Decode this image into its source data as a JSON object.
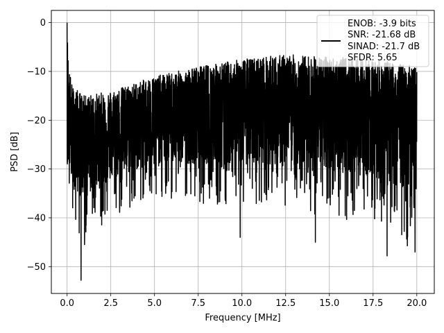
{
  "chart_data": {
    "type": "line",
    "title": "",
    "xlabel": "Frequency [MHz]",
    "ylabel": "PSD [dB]",
    "xlim": [
      -0.9,
      21.0
    ],
    "ylim": [
      -55.5,
      2.5
    ],
    "xticks": [
      0.0,
      2.5,
      5.0,
      7.5,
      10.0,
      12.5,
      15.0,
      17.5,
      20.0
    ],
    "xtick_labels": [
      "0.0",
      "2.5",
      "5.0",
      "7.5",
      "10.0",
      "12.5",
      "15.0",
      "17.5",
      "20.0"
    ],
    "yticks": [
      0,
      -10,
      -20,
      -30,
      -40,
      -50
    ],
    "ytick_labels": [
      "0",
      "−10",
      "−20",
      "−30",
      "−40",
      "−50"
    ],
    "grid": true,
    "legend_position": "upper right",
    "legend": [
      "ENOB: -3.9 bits",
      "SNR: -21.68 dB",
      "SINAD: -21.7 dB",
      "SFDR: 5.65"
    ],
    "series": [
      {
        "color": "#000000",
        "x_range": [
          0.0,
          20.0
        ],
        "peak": {
          "x": 0.0,
          "y": 0.0
        },
        "noise_floor_envelope": {
          "x": [
            0.0,
            0.1,
            0.3,
            1.0,
            2.5,
            5.0,
            7.5,
            10.0,
            12.5,
            15.0,
            17.5,
            20.0
          ],
          "upper": [
            0.0,
            -9.0,
            -13.0,
            -15.0,
            -14.0,
            -11.0,
            -9.0,
            -7.5,
            -6.5,
            -7.0,
            -7.5,
            -9.0
          ],
          "median": [
            -29.0,
            -20.0,
            -24.0,
            -25.0,
            -23.0,
            -20.0,
            -19.0,
            -18.0,
            -18.0,
            -18.5,
            -19.0,
            -20.0
          ],
          "lower": [
            -29.0,
            -36.0,
            -42.0,
            -45.0,
            -40.0,
            -36.0,
            -37.0,
            -38.0,
            -38.0,
            -40.0,
            -42.0,
            -47.0
          ]
        },
        "notable_minima": [
          {
            "x": 0.8,
            "y": -52.8
          },
          {
            "x": 1.0,
            "y": -45.5
          },
          {
            "x": 9.9,
            "y": -44.0
          },
          {
            "x": 14.2,
            "y": -45.0
          },
          {
            "x": 18.3,
            "y": -47.8
          },
          {
            "x": 19.9,
            "y": -47.0
          }
        ]
      }
    ]
  }
}
